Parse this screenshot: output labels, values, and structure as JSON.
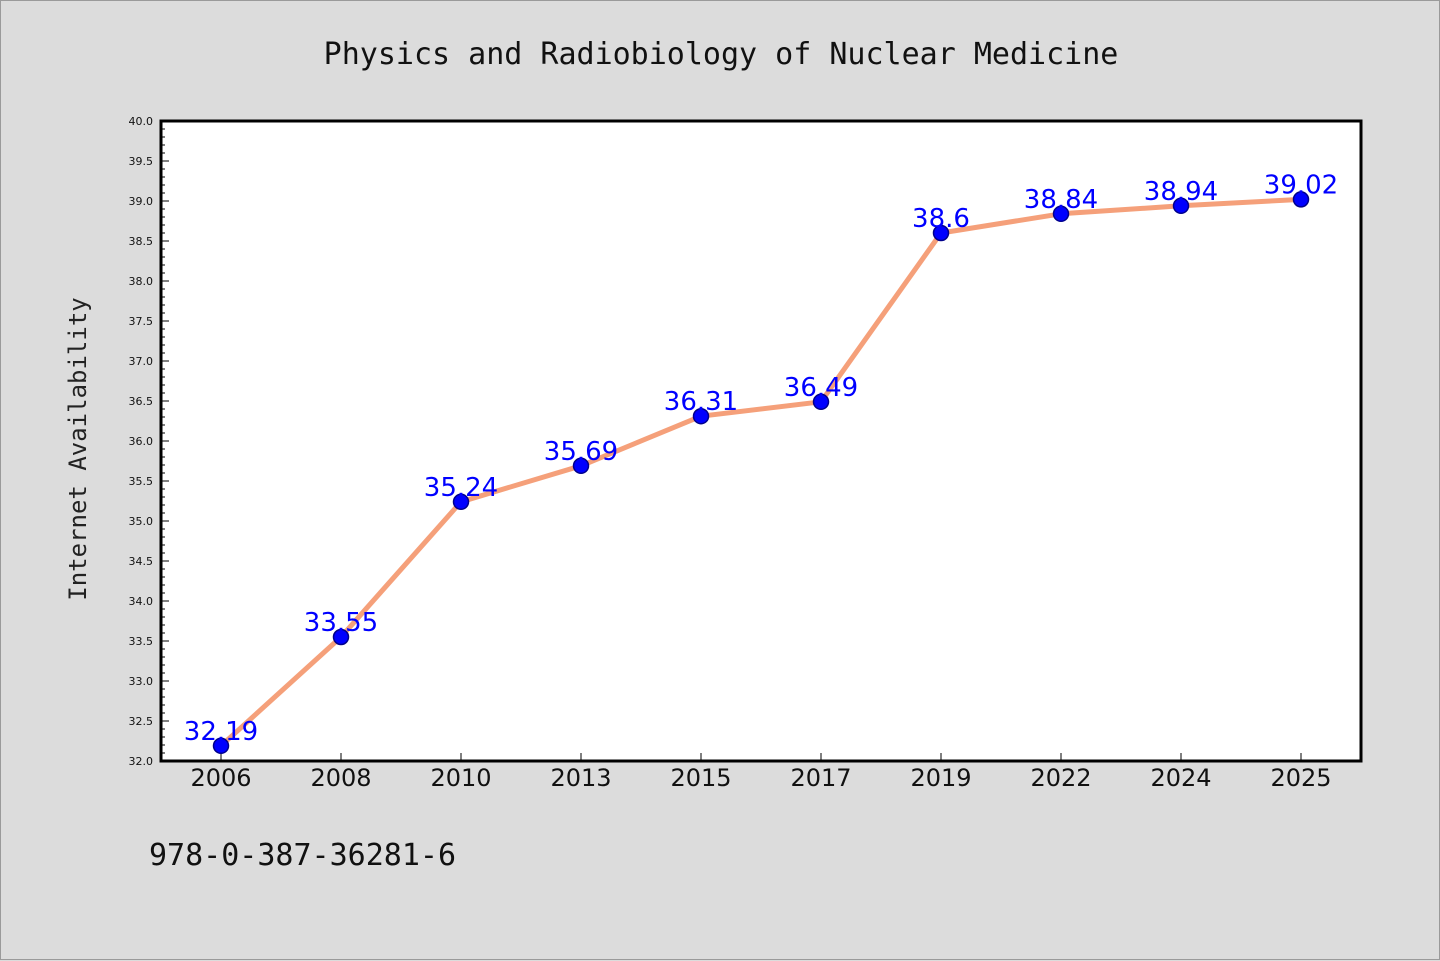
{
  "chart_data": {
    "type": "line",
    "title": "Physics and Radiobiology of Nuclear Medicine",
    "ylabel": "Internet Availability",
    "xlabel": "",
    "categories": [
      "2006",
      "2008",
      "2010",
      "2013",
      "2015",
      "2017",
      "2019",
      "2022",
      "2024",
      "2025"
    ],
    "series": [
      {
        "values": [
          32.19,
          33.55,
          35.24,
          35.69,
          36.31,
          36.49,
          38.6,
          38.84,
          38.94,
          39.02
        ],
        "labels": [
          "32.19",
          "33.55",
          "35.24",
          "35.69",
          "36.31",
          "36.49",
          "38.6",
          "38.84",
          "38.94",
          "39.02"
        ]
      }
    ],
    "ylim": [
      32.0,
      40.0
    ],
    "yticks": [
      "32.0",
      "32.5",
      "33.0",
      "33.5",
      "34.0",
      "34.5",
      "35.0",
      "35.5",
      "36.0",
      "36.5",
      "37.0",
      "37.5",
      "38.0",
      "38.5",
      "39.0",
      "39.5",
      "40.0"
    ],
    "grid": false,
    "legend": "none",
    "colors": {
      "line": "#f5a07a",
      "marker": "#0000ff",
      "marker_edge": "#00008b",
      "data_label": "#0000ff",
      "background": "#dcdcdc",
      "plot_area": "#ffffff"
    }
  },
  "footer": {
    "isbn": "978-0-387-36281-6"
  }
}
